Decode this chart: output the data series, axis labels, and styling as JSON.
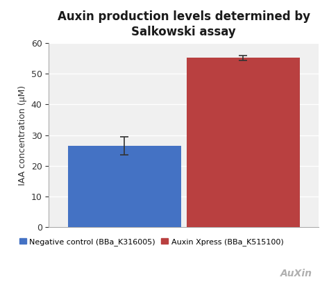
{
  "title": "Auxin production levels determined by\nSalkowski assay",
  "ylabel": "IAA concentration (μM)",
  "values": [
    26.5,
    55.2
  ],
  "errors": [
    3.0,
    0.8
  ],
  "bar_colors": [
    "#4472C4",
    "#B94040"
  ],
  "ylim": [
    0,
    60
  ],
  "yticks": [
    0,
    10,
    20,
    30,
    40,
    50,
    60
  ],
  "bar_width": 0.42,
  "x_positions": [
    0.28,
    0.72
  ],
  "xlim": [
    0,
    1
  ],
  "legend_labels": [
    "Negative control (BBa_K316005)",
    "Auxin Xpress (BBa_K515100)"
  ],
  "legend_colors": [
    "#4472C4",
    "#B94040"
  ],
  "background_color": "#ffffff",
  "plot_bg_color": "#f0f0f0",
  "title_fontsize": 12,
  "title_color": "#1a1a1a",
  "label_fontsize": 9,
  "tick_fontsize": 9,
  "legend_fontsize": 8,
  "grid_color": "#ffffff",
  "auxin_text": "AuXin",
  "auxin_text_color": "#b0b0b0"
}
